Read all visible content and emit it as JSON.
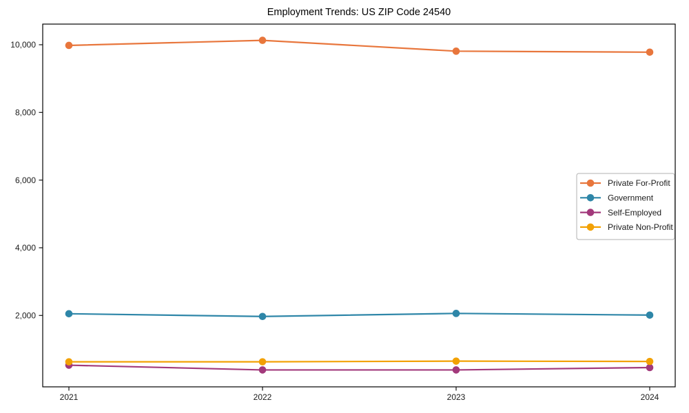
{
  "chart_data": {
    "type": "line",
    "title": "Employment Trends: US ZIP Code 24540",
    "xlabel": "",
    "ylabel": "",
    "x_labels": [
      "2021",
      "2022",
      "2023",
      "2024"
    ],
    "yticks": [
      2000,
      4000,
      6000,
      8000,
      10000
    ],
    "ytick_labels": [
      "2,000",
      "4,000",
      "6,000",
      "8,000",
      "10,000"
    ],
    "ylim": [
      -110,
      10610
    ],
    "grid": false,
    "frame": "full-box",
    "legend_position": "center right",
    "marker": "circle",
    "series": [
      {
        "name": "Private For-Profit",
        "color": "#E8763C",
        "values": [
          9980,
          10130,
          9810,
          9780
        ]
      },
      {
        "name": "Government",
        "color": "#2E86A8",
        "values": [
          2050,
          1970,
          2060,
          2010
        ]
      },
      {
        "name": "Self-Employed",
        "color": "#A2397B",
        "values": [
          530,
          390,
          390,
          460
        ]
      },
      {
        "name": "Private Non-Profit",
        "color": "#F2A104",
        "values": [
          630,
          630,
          650,
          640
        ]
      }
    ]
  },
  "style": {
    "background": "#ffffff",
    "axis_color": "#000000",
    "tick_label_color": "#1a1a1a",
    "legend_border_color": "#b0b0b0",
    "legend_fill": "#ffffff"
  }
}
